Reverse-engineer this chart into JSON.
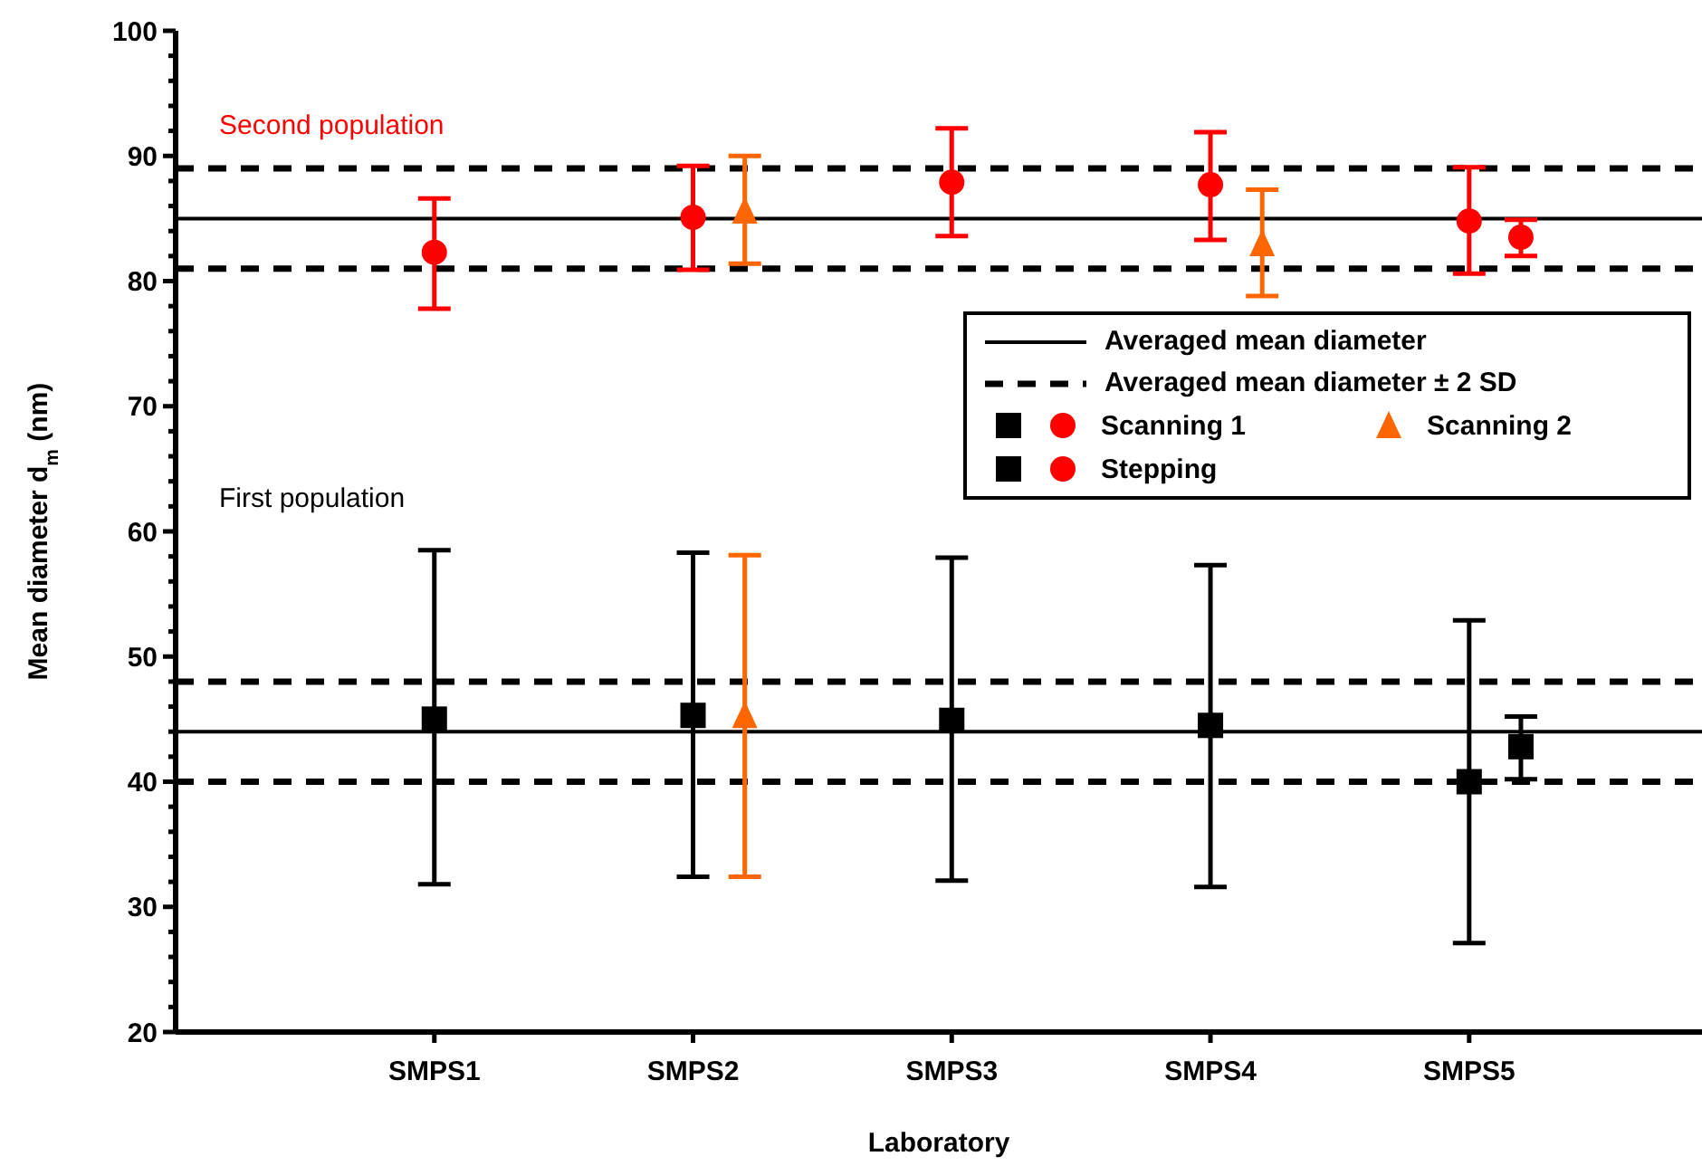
{
  "chart_data": {
    "type": "scatter",
    "xlabel": "Laboratory",
    "ylabel": "Mean diameter d$_{m}$ (nm)",
    "categories": [
      "SMPS1",
      "SMPS2",
      "SMPS3",
      "SMPS4",
      "SMPS5"
    ],
    "ylim": [
      20,
      100
    ],
    "yticks": [
      20,
      {
        "value": 22,
        "label": null
      },
      {
        "value": 24,
        "label": null
      },
      {
        "value": 26,
        "label": null
      },
      {
        "value": 28,
        "label": null
      },
      30,
      {
        "value": 32,
        "label": null
      },
      {
        "value": 34,
        "label": null
      },
      {
        "value": 36,
        "label": null
      },
      {
        "value": 38,
        "label": null
      },
      40,
      {
        "value": 42,
        "label": null
      },
      {
        "value": 44,
        "label": null
      },
      {
        "value": 46,
        "label": null
      },
      {
        "value": 48,
        "label": null
      },
      50,
      {
        "value": 52,
        "label": null
      },
      {
        "value": 54,
        "label": null
      },
      {
        "value": 56,
        "label": null
      },
      {
        "value": 58,
        "label": null
      },
      60,
      {
        "value": 62,
        "label": null
      },
      {
        "value": 64,
        "label": null
      },
      {
        "value": 66,
        "label": null
      },
      {
        "value": 68,
        "label": null
      },
      70,
      {
        "value": 72,
        "label": null
      },
      {
        "value": 74,
        "label": null
      },
      {
        "value": 76,
        "label": null
      },
      {
        "value": 78,
        "label": null
      },
      80,
      {
        "value": 82,
        "label": null
      },
      {
        "value": 84,
        "label": null
      },
      {
        "value": 86,
        "label": null
      },
      {
        "value": 88,
        "label": null
      },
      90,
      {
        "value": 92,
        "label": null
      },
      {
        "value": 94,
        "label": null
      },
      {
        "value": 96,
        "label": null
      },
      {
        "value": 98,
        "label": null
      },
      100
    ],
    "legend": "right",
    "series": [
      {
        "color": "#000000",
        "marker": "square",
        "values": [
          45.0,
          45.3,
          44.9,
          44.5,
          40.0
        ],
        "errors": [
          [
            31.8,
            58.5
          ],
          [
            32.4,
            58.3
          ],
          [
            32.1,
            57.9
          ],
          [
            31.6,
            57.3
          ],
          [
            27.1,
            52.9
          ]
        ]
      },
      {
        "name": "Scanning 1",
        "color": "#ff0000",
        "marker": "circle",
        "values": [
          82.3,
          85.1,
          87.9,
          87.7,
          84.8
        ],
        "errors": [
          [
            77.8,
            86.6
          ],
          [
            80.9,
            89.2
          ],
          [
            83.6,
            92.2
          ],
          [
            83.3,
            91.9
          ],
          [
            80.6,
            89.1
          ]
        ]
      },
      {
        "color": "#ff6600",
        "marker": "triangle",
        "values": [
          null,
          45.3,
          null,
          null,
          null
        ],
        "errors": [
          null,
          [
            32.4,
            58.1
          ],
          null,
          null,
          null
        ]
      },
      {
        "name": "Scanning 2",
        "color": "#ff6600",
        "marker": "triangle",
        "values": [
          null,
          85.6,
          null,
          83.0,
          null
        ],
        "errors": [
          null,
          [
            81.4,
            90.0
          ],
          null,
          [
            78.8,
            87.3
          ],
          null
        ]
      },
      {
        "color": "#000000",
        "marker": "square",
        "values": [
          null,
          null,
          null,
          null,
          42.8
        ],
        "errors": [
          null,
          null,
          null,
          null,
          [
            40.2,
            45.2
          ]
        ]
      },
      {
        "name": "Stepping",
        "color": "#ff0000",
        "marker": "circle",
        "values": [
          null,
          null,
          null,
          null,
          83.5
        ],
        "errors": [
          null,
          null,
          null,
          null,
          [
            82.0,
            84.9
          ]
        ]
      }
    ],
    "ref_lines": [
      {
        "axis": "y",
        "value": 85,
        "label": "Averaged mean diameter",
        "line_style": "solid",
        "color": "#000000"
      },
      {
        "axis": "y",
        "value": 44,
        "line_style": "solid",
        "color": "#000000"
      },
      {
        "axis": "y",
        "value": 89,
        "label": "Averaged mean diameter ± 2 SD",
        "line_style": "dashed",
        "color": "#000000"
      },
      {
        "axis": "y",
        "value": 81,
        "line_style": "dashed",
        "color": "#000000"
      },
      {
        "axis": "y",
        "value": 48,
        "line_style": "dashed",
        "color": "#000000"
      },
      {
        "axis": "y",
        "value": 40,
        "line_style": "dashed",
        "color": "#000000"
      }
    ],
    "annotations": [
      "Second population",
      "First population"
    ]
  }
}
